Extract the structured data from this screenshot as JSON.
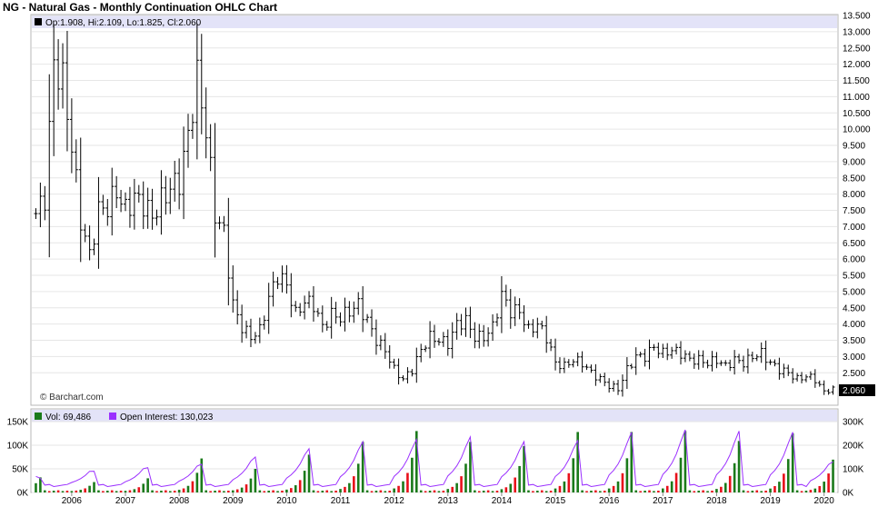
{
  "title": "NG - Natural Gas - Monthly Continuation OHLC Chart",
  "price_legend": "Op:1.908, Hi:2.109, Lo:1.825, Cl:2.060",
  "watermark": "© Barchart.com",
  "last_price_label": "2.060",
  "volume_legend": {
    "vol": "Vol: 69,486",
    "oi": "Open Interest: 130,023"
  },
  "colors": {
    "price": "#000000",
    "vol_up": "#1a7a1a",
    "vol_down": "#e8101a",
    "oi_line": "#9b30ff",
    "legend_band": "#e3e3f8",
    "last_tag": "#000000"
  },
  "chart_data": [
    {
      "type": "ohlc",
      "title": "NG - Natural Gas - Monthly Continuation OHLC Chart",
      "grid": true,
      "y_axis": {
        "side": "right",
        "ylim": [
          1.5,
          13.5
        ],
        "ticks": [
          "13.500",
          "13.000",
          "12.500",
          "12.000",
          "11.500",
          "11.000",
          "10.500",
          "10.000",
          "9.500",
          "9.000",
          "8.500",
          "8.000",
          "7.500",
          "7.000",
          "6.500",
          "6.000",
          "5.500",
          "5.000",
          "4.500",
          "4.000",
          "3.500",
          "3.000",
          "2.500",
          "2.060"
        ]
      },
      "x_axis": {
        "ticks": [
          "2006",
          "2007",
          "2008",
          "2009",
          "2010",
          "2011",
          "2012",
          "2013",
          "2014",
          "2015",
          "2016",
          "2017",
          "2018",
          "2019",
          "2020"
        ]
      },
      "anchor_closes": [
        [
          "2005-05",
          7.4
        ],
        [
          "2005-07",
          7.9
        ],
        [
          "2005-09",
          12.0
        ],
        [
          "2005-11",
          11.5
        ],
        [
          "2006-01",
          9.5
        ],
        [
          "2006-03",
          7.2
        ],
        [
          "2006-05",
          6.1
        ],
        [
          "2006-07",
          7.5
        ],
        [
          "2006-09",
          7.6
        ],
        [
          "2006-11",
          8.1
        ],
        [
          "2007-01",
          7.5
        ],
        [
          "2007-03",
          7.9
        ],
        [
          "2007-05",
          7.7
        ],
        [
          "2007-07",
          7.3
        ],
        [
          "2007-09",
          7.8
        ],
        [
          "2007-11",
          8.2
        ],
        [
          "2008-01",
          8.4
        ],
        [
          "2008-03",
          9.8
        ],
        [
          "2008-05",
          11.6
        ],
        [
          "2008-07",
          10.0
        ],
        [
          "2008-09",
          7.4
        ],
        [
          "2008-11",
          6.8
        ],
        [
          "2009-01",
          4.6
        ],
        [
          "2009-03",
          3.9
        ],
        [
          "2009-05",
          3.6
        ],
        [
          "2009-07",
          3.8
        ],
        [
          "2009-09",
          4.8
        ],
        [
          "2009-11",
          5.5
        ],
        [
          "2010-01",
          5.2
        ],
        [
          "2010-03",
          4.3
        ],
        [
          "2010-05",
          4.7
        ],
        [
          "2010-07",
          4.6
        ],
        [
          "2010-09",
          3.9
        ],
        [
          "2010-11",
          4.3
        ],
        [
          "2011-01",
          4.2
        ],
        [
          "2011-03",
          4.4
        ],
        [
          "2011-05",
          4.6
        ],
        [
          "2011-07",
          4.1
        ],
        [
          "2011-09",
          3.5
        ],
        [
          "2011-11",
          3.2
        ],
        [
          "2012-01",
          2.6
        ],
        [
          "2012-03",
          2.3
        ],
        [
          "2012-05",
          2.6
        ],
        [
          "2012-07",
          3.2
        ],
        [
          "2012-09",
          3.6
        ],
        [
          "2012-11",
          3.5
        ],
        [
          "2013-01",
          3.4
        ],
        [
          "2013-03",
          4.0
        ],
        [
          "2013-05",
          4.1
        ],
        [
          "2013-07",
          3.6
        ],
        [
          "2013-09",
          3.6
        ],
        [
          "2013-11",
          3.9
        ],
        [
          "2014-01",
          4.9
        ],
        [
          "2014-03",
          4.4
        ],
        [
          "2014-05",
          4.4
        ],
        [
          "2014-07",
          3.8
        ],
        [
          "2014-09",
          4.0
        ],
        [
          "2014-11",
          3.6
        ],
        [
          "2015-01",
          2.8
        ],
        [
          "2015-03",
          2.7
        ],
        [
          "2015-05",
          2.9
        ],
        [
          "2015-07",
          2.8
        ],
        [
          "2015-09",
          2.5
        ],
        [
          "2015-11",
          2.3
        ],
        [
          "2016-01",
          2.1
        ],
        [
          "2016-03",
          2.0
        ],
        [
          "2016-05",
          2.6
        ],
        [
          "2016-07",
          3.0
        ],
        [
          "2016-09",
          3.0
        ],
        [
          "2016-11",
          3.3
        ],
        [
          "2017-01",
          3.1
        ],
        [
          "2017-03",
          3.2
        ],
        [
          "2017-05",
          3.1
        ],
        [
          "2017-07",
          2.9
        ],
        [
          "2017-09",
          2.9
        ],
        [
          "2017-11",
          2.8
        ],
        [
          "2018-01",
          2.9
        ],
        [
          "2018-03",
          2.7
        ],
        [
          "2018-05",
          2.9
        ],
        [
          "2018-07",
          2.8
        ],
        [
          "2018-09",
          3.0
        ],
        [
          "2018-11",
          3.1
        ],
        [
          "2019-01",
          2.8
        ],
        [
          "2019-03",
          2.6
        ],
        [
          "2019-05",
          2.5
        ],
        [
          "2019-07",
          2.3
        ],
        [
          "2019-09",
          2.4
        ],
        [
          "2019-11",
          2.3
        ],
        [
          "2020-01",
          1.9
        ],
        [
          "2020-03",
          2.06
        ]
      ],
      "last_bar": {
        "open": 1.908,
        "high": 2.109,
        "low": 1.825,
        "close": 2.06
      }
    },
    {
      "type": "bar+line",
      "series": [
        {
          "name": "Vol",
          "kind": "bar",
          "last": 69486
        },
        {
          "name": "Open Interest",
          "kind": "line",
          "last": 130023
        }
      ],
      "y_left": {
        "ylim": [
          0,
          150000
        ],
        "ticks": [
          "150K",
          "100K",
          "50K",
          "0K"
        ]
      },
      "y_right": {
        "ylim": [
          0,
          300000
        ],
        "ticks": [
          "300K",
          "200K",
          "100K",
          "0K"
        ]
      },
      "cycle_peaks_vol": [
        [
          "2005-06",
          32000
        ],
        [
          "2006-06",
          22000
        ],
        [
          "2007-06",
          30000
        ],
        [
          "2008-06",
          72000
        ],
        [
          "2009-06",
          50000
        ],
        [
          "2010-06",
          80000
        ],
        [
          "2011-06",
          107000
        ],
        [
          "2012-06",
          130000
        ],
        [
          "2013-06",
          107000
        ],
        [
          "2014-06",
          98000
        ],
        [
          "2015-06",
          128000
        ],
        [
          "2016-06",
          128000
        ],
        [
          "2017-06",
          130000
        ],
        [
          "2018-06",
          109000
        ],
        [
          "2019-06",
          125000
        ],
        [
          "2020-03",
          69486
        ]
      ],
      "cycle_peaks_oi": [
        [
          "2005-06",
          60000
        ],
        [
          "2006-06",
          90000
        ],
        [
          "2007-06",
          105000
        ],
        [
          "2008-06",
          120000
        ],
        [
          "2009-06",
          150000
        ],
        [
          "2010-06",
          185000
        ],
        [
          "2011-06",
          215000
        ],
        [
          "2012-06",
          225000
        ],
        [
          "2013-06",
          235000
        ],
        [
          "2014-06",
          215000
        ],
        [
          "2015-06",
          220000
        ],
        [
          "2016-06",
          255000
        ],
        [
          "2017-06",
          265000
        ],
        [
          "2018-06",
          260000
        ],
        [
          "2019-06",
          255000
        ],
        [
          "2020-03",
          130023
        ]
      ]
    }
  ]
}
